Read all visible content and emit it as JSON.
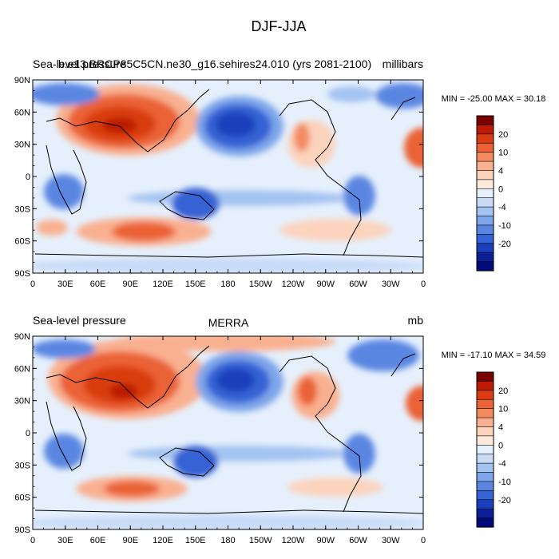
{
  "figure": {
    "title": "DJF-JJA"
  },
  "colorbar_labels": [
    "20",
    "10",
    "4",
    "0",
    "-4",
    "-10",
    "-20"
  ],
  "colorbar_colors": [
    "#7a0000",
    "#bb1b05",
    "#d93d11",
    "#ea6236",
    "#f38a60",
    "#f9b090",
    "#fcd3bd",
    "#fdeadb",
    "#e6f0fc",
    "#c7dbf7",
    "#a3c3f1",
    "#7ea6ea",
    "#5a86e2",
    "#3562d4",
    "#1a3fbc",
    "#0a1e96",
    "#000a7a"
  ],
  "chart_data": [
    {
      "type": "heatmap",
      "title_left": "Sea-level pressure",
      "title_center": "b.e13.BRCP85C5CN.ne30_g16.sehires24.010 (yrs 2081-2100)",
      "title_right": "millibars",
      "min_max": "MIN = -25.00 MAX =  30.18",
      "x_ticks": [
        "0",
        "30E",
        "60E",
        "90E",
        "120E",
        "150E",
        "180",
        "150W",
        "120W",
        "90W",
        "60W",
        "30W",
        "0"
      ],
      "y_ticks": [
        "90N",
        "60N",
        "30N",
        "0",
        "30S",
        "60S",
        "90S"
      ],
      "x_range": [
        0,
        360
      ],
      "y_range": [
        -90,
        90
      ]
    },
    {
      "type": "heatmap",
      "title_left": "Sea-level pressure",
      "title_center": "MERRA",
      "title_right": "mb",
      "min_max": "MIN = -17.10 MAX =  34.59",
      "x_ticks": [
        "0",
        "30E",
        "60E",
        "90E",
        "120E",
        "150E",
        "180",
        "150W",
        "120W",
        "90W",
        "60W",
        "30W",
        "0"
      ],
      "y_ticks": [
        "90N",
        "60N",
        "30N",
        "0",
        "30S",
        "60S",
        "90S"
      ],
      "x_range": [
        0,
        360
      ],
      "y_range": [
        -90,
        90
      ]
    }
  ]
}
